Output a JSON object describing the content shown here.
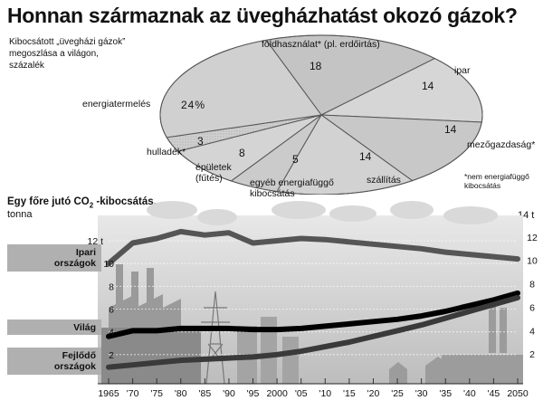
{
  "title": "Honnan származnak az üvegházhatást okozó gázok?",
  "pie": {
    "caption_lines": [
      "Kibocsátott „üvegházi gázok”",
      "megoszlása a világon,",
      "százalék"
    ],
    "footnote_lines": [
      "*nem energiafüggő",
      "kibocsátás"
    ]
  },
  "line": {
    "title_prefix": "Egy főre jutó CO",
    "title_sub": "2",
    "title_suffix": " -kibocsátás,",
    "unit_left": "tonna",
    "unit_right": "14 t",
    "left_top_tick": "12 t",
    "series_labels": {
      "ipari": [
        "Ipari",
        "országok"
      ],
      "vilag": [
        "Világ"
      ],
      "fejlodo": [
        "Fejlődő",
        "országok"
      ]
    }
  },
  "chart_data": [
    {
      "type": "pie",
      "title": "",
      "slices": [
        {
          "label": "földhasználat* (pl. erdőirtás)",
          "value": 18,
          "value_label": "18",
          "color": "#c4c4c4"
        },
        {
          "label": "ipar",
          "value": 14,
          "value_label": "14",
          "color": "#d6d6d6"
        },
        {
          "label": "mezőgazdaság*",
          "value": 14,
          "value_label": "14",
          "color": "#c8c8c8"
        },
        {
          "label": "szállítás",
          "value": 14,
          "value_label": "14",
          "color": "#d2d2d2"
        },
        {
          "label": "egyéb energiafüggő kibocsátás",
          "value": 5,
          "value_label": "5",
          "color": "#cbcbcb"
        },
        {
          "label": "épületek (fűtés)",
          "value": 8,
          "value_label": "8",
          "color": "#d4d4d4"
        },
        {
          "label": "hulladék*",
          "value": 3,
          "value_label": "3",
          "color": "#b0b0b0"
        },
        {
          "label": "energiatermelés",
          "value": 24,
          "value_label": "24%",
          "color": "#d0d0d0"
        }
      ]
    },
    {
      "type": "line",
      "title": "Egy főre jutó CO2 -kibocsátás,",
      "ylabel": "tonna",
      "x_ticks": [
        "1965",
        "'70",
        "'75",
        "'80",
        "'85",
        "'90",
        "'95",
        "2000",
        "'05",
        "'10",
        "'15",
        "'20",
        "'25",
        "'30",
        "'35",
        "'40",
        "'45",
        "2050"
      ],
      "left_yticks": [
        2,
        4,
        6,
        8,
        10,
        "12 t"
      ],
      "right_yticks": [
        2,
        4,
        6,
        8,
        10,
        12,
        "14 t"
      ],
      "ylim": [
        0,
        12
      ],
      "grid": true,
      "series": [
        {
          "name": "Ipari országok",
          "x": [
            1965,
            1970,
            1975,
            1980,
            1985,
            1990,
            1995,
            2000,
            2005,
            2010,
            2015,
            2020,
            2025,
            2030,
            2035,
            2040,
            2045,
            2050
          ],
          "values": [
            10.0,
            11.8,
            12.2,
            12.8,
            12.5,
            12.7,
            11.8,
            12.0,
            12.2,
            12.1,
            11.9,
            11.7,
            11.5,
            11.3,
            11.0,
            10.8,
            10.6,
            10.4
          ]
        },
        {
          "name": "Világ",
          "x": [
            1965,
            1970,
            1975,
            1980,
            1985,
            1990,
            1995,
            2000,
            2005,
            2010,
            2015,
            2020,
            2025,
            2030,
            2035,
            2040,
            2045,
            2050
          ],
          "values": [
            3.6,
            4.1,
            4.1,
            4.3,
            4.3,
            4.3,
            4.2,
            4.2,
            4.3,
            4.5,
            4.7,
            4.9,
            5.1,
            5.4,
            5.8,
            6.3,
            6.8,
            7.4
          ]
        },
        {
          "name": "Fejlődő országok",
          "x": [
            1965,
            1970,
            1975,
            1980,
            1985,
            1990,
            1995,
            2000,
            2005,
            2010,
            2015,
            2020,
            2025,
            2030,
            2035,
            2040,
            2045,
            2050
          ],
          "values": [
            0.9,
            1.1,
            1.3,
            1.5,
            1.6,
            1.7,
            1.8,
            2.0,
            2.3,
            2.7,
            3.1,
            3.6,
            4.1,
            4.6,
            5.2,
            5.8,
            6.4,
            7.0
          ]
        }
      ]
    }
  ]
}
